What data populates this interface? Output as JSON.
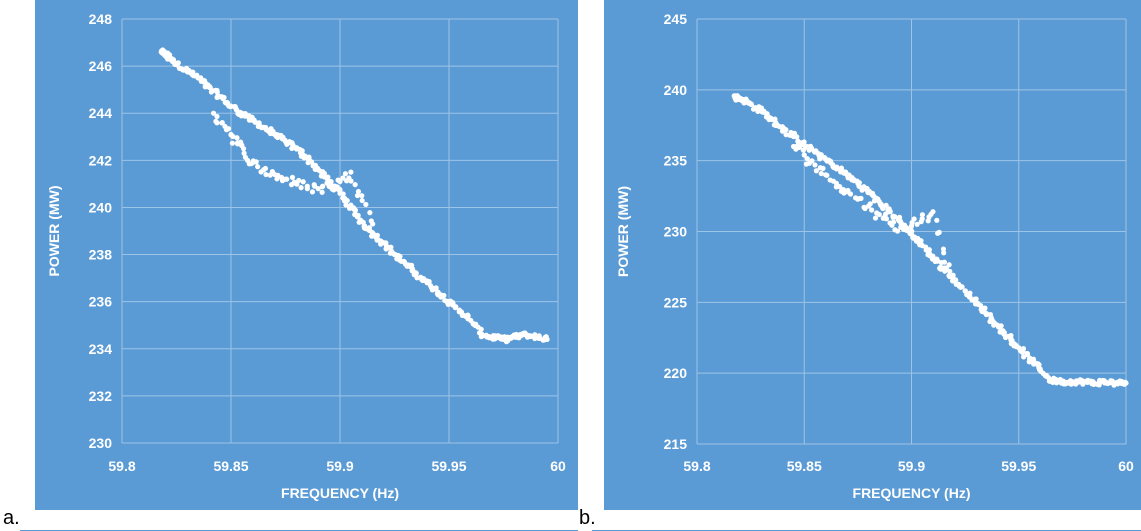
{
  "labels": {
    "a": "a.",
    "b": "b."
  },
  "colors": {
    "background": "#5B9BD5",
    "points": "#ffffff",
    "grid": "#9DC3E6"
  },
  "chart_data": [
    {
      "type": "scatter",
      "panel": "a",
      "xlabel": "FREQUENCY (Hz)",
      "ylabel": "POWER (MW)",
      "xlim": [
        59.8,
        60
      ],
      "ylim": [
        230,
        248
      ],
      "xticks": [
        59.8,
        59.85,
        59.9,
        59.95,
        60
      ],
      "xtick_labels": [
        "59.8",
        "59.85",
        "59.9",
        "59.95",
        "60"
      ],
      "yticks": [
        230,
        232,
        234,
        236,
        238,
        240,
        242,
        244,
        246,
        248
      ],
      "ytick_labels": [
        "230",
        "232",
        "234",
        "236",
        "238",
        "240",
        "242",
        "244",
        "246",
        "248"
      ],
      "grid": true,
      "series": [
        {
          "x": [
            59.818,
            59.82,
            59.822,
            59.825,
            59.83,
            59.835,
            59.84,
            59.845,
            59.85,
            59.855,
            59.86,
            59.865,
            59.87,
            59.875,
            59.88,
            59.885,
            59.89,
            59.895,
            59.9,
            59.905,
            59.91,
            59.915,
            59.92,
            59.925,
            59.93,
            59.935,
            59.94,
            59.945,
            59.95,
            59.955,
            59.96,
            59.965,
            59.97,
            59.975,
            59.98,
            59.985,
            59.99,
            59.995
          ],
          "y": [
            246.6,
            246.5,
            246.3,
            246.1,
            245.8,
            245.5,
            245.1,
            244.7,
            244.3,
            244.0,
            243.7,
            243.4,
            243.1,
            242.8,
            242.5,
            242.1,
            241.6,
            241.1,
            240.6,
            240.0,
            239.4,
            238.9,
            238.5,
            238.0,
            237.6,
            237.2,
            236.8,
            236.4,
            236.0,
            235.6,
            235.2,
            234.6,
            234.5,
            234.4,
            234.5,
            234.6,
            234.5,
            234.4
          ]
        },
        {
          "x": [
            59.842,
            59.846,
            59.85,
            59.853,
            59.856,
            59.86,
            59.865,
            59.87,
            59.875,
            59.88,
            59.885,
            59.89,
            59.895,
            59.9,
            59.905,
            59.91,
            59.915
          ],
          "y": [
            244.0,
            243.6,
            243.1,
            242.7,
            242.3,
            241.9,
            241.6,
            241.4,
            241.2,
            241.0,
            240.9,
            240.8,
            240.9,
            241.1,
            241.5,
            240.5,
            239.3
          ]
        }
      ]
    },
    {
      "type": "scatter",
      "panel": "b",
      "xlabel": "FREQUENCY (Hz)",
      "ylabel": "POWER (MW)",
      "xlim": [
        59.8,
        60
      ],
      "ylim": [
        215,
        245
      ],
      "xticks": [
        59.8,
        59.85,
        59.9,
        59.95,
        60
      ],
      "xtick_labels": [
        "59.8",
        "59.85",
        "59.9",
        "59.95",
        "60"
      ],
      "yticks": [
        215,
        220,
        225,
        230,
        235,
        240,
        245
      ],
      "ytick_labels": [
        "215",
        "220",
        "225",
        "230",
        "235",
        "240",
        "245"
      ],
      "grid": true,
      "series": [
        {
          "x": [
            59.818,
            59.82,
            59.825,
            59.83,
            59.835,
            59.84,
            59.845,
            59.85,
            59.855,
            59.86,
            59.865,
            59.87,
            59.875,
            59.88,
            59.885,
            59.89,
            59.895,
            59.9,
            59.905,
            59.91,
            59.915,
            59.92,
            59.925,
            59.93,
            59.935,
            59.94,
            59.945,
            59.95,
            59.955,
            59.96,
            59.965,
            59.97,
            59.975,
            59.98,
            59.985,
            59.99,
            59.995,
            60.0
          ],
          "y": [
            239.5,
            239.4,
            239.0,
            238.5,
            237.9,
            237.3,
            236.7,
            236.1,
            235.6,
            235.1,
            234.5,
            234.0,
            233.4,
            232.8,
            232.1,
            231.4,
            230.6,
            229.8,
            229.0,
            228.2,
            227.4,
            226.6,
            225.8,
            225.0,
            224.2,
            223.4,
            222.6,
            221.8,
            221.0,
            220.3,
            219.5,
            219.4,
            219.4,
            219.4,
            219.3,
            219.4,
            219.3,
            219.3
          ]
        },
        {
          "x": [
            59.845,
            59.85,
            59.855,
            59.86,
            59.865,
            59.87,
            59.875,
            59.88,
            59.885,
            59.89,
            59.895,
            59.9,
            59.905,
            59.91,
            59.915,
            59.92
          ],
          "y": [
            236.0,
            235.4,
            234.7,
            234.0,
            233.4,
            232.8,
            232.3,
            231.8,
            231.2,
            230.6,
            230.3,
            230.4,
            230.9,
            231.4,
            228.5,
            226.5
          ]
        }
      ]
    }
  ]
}
